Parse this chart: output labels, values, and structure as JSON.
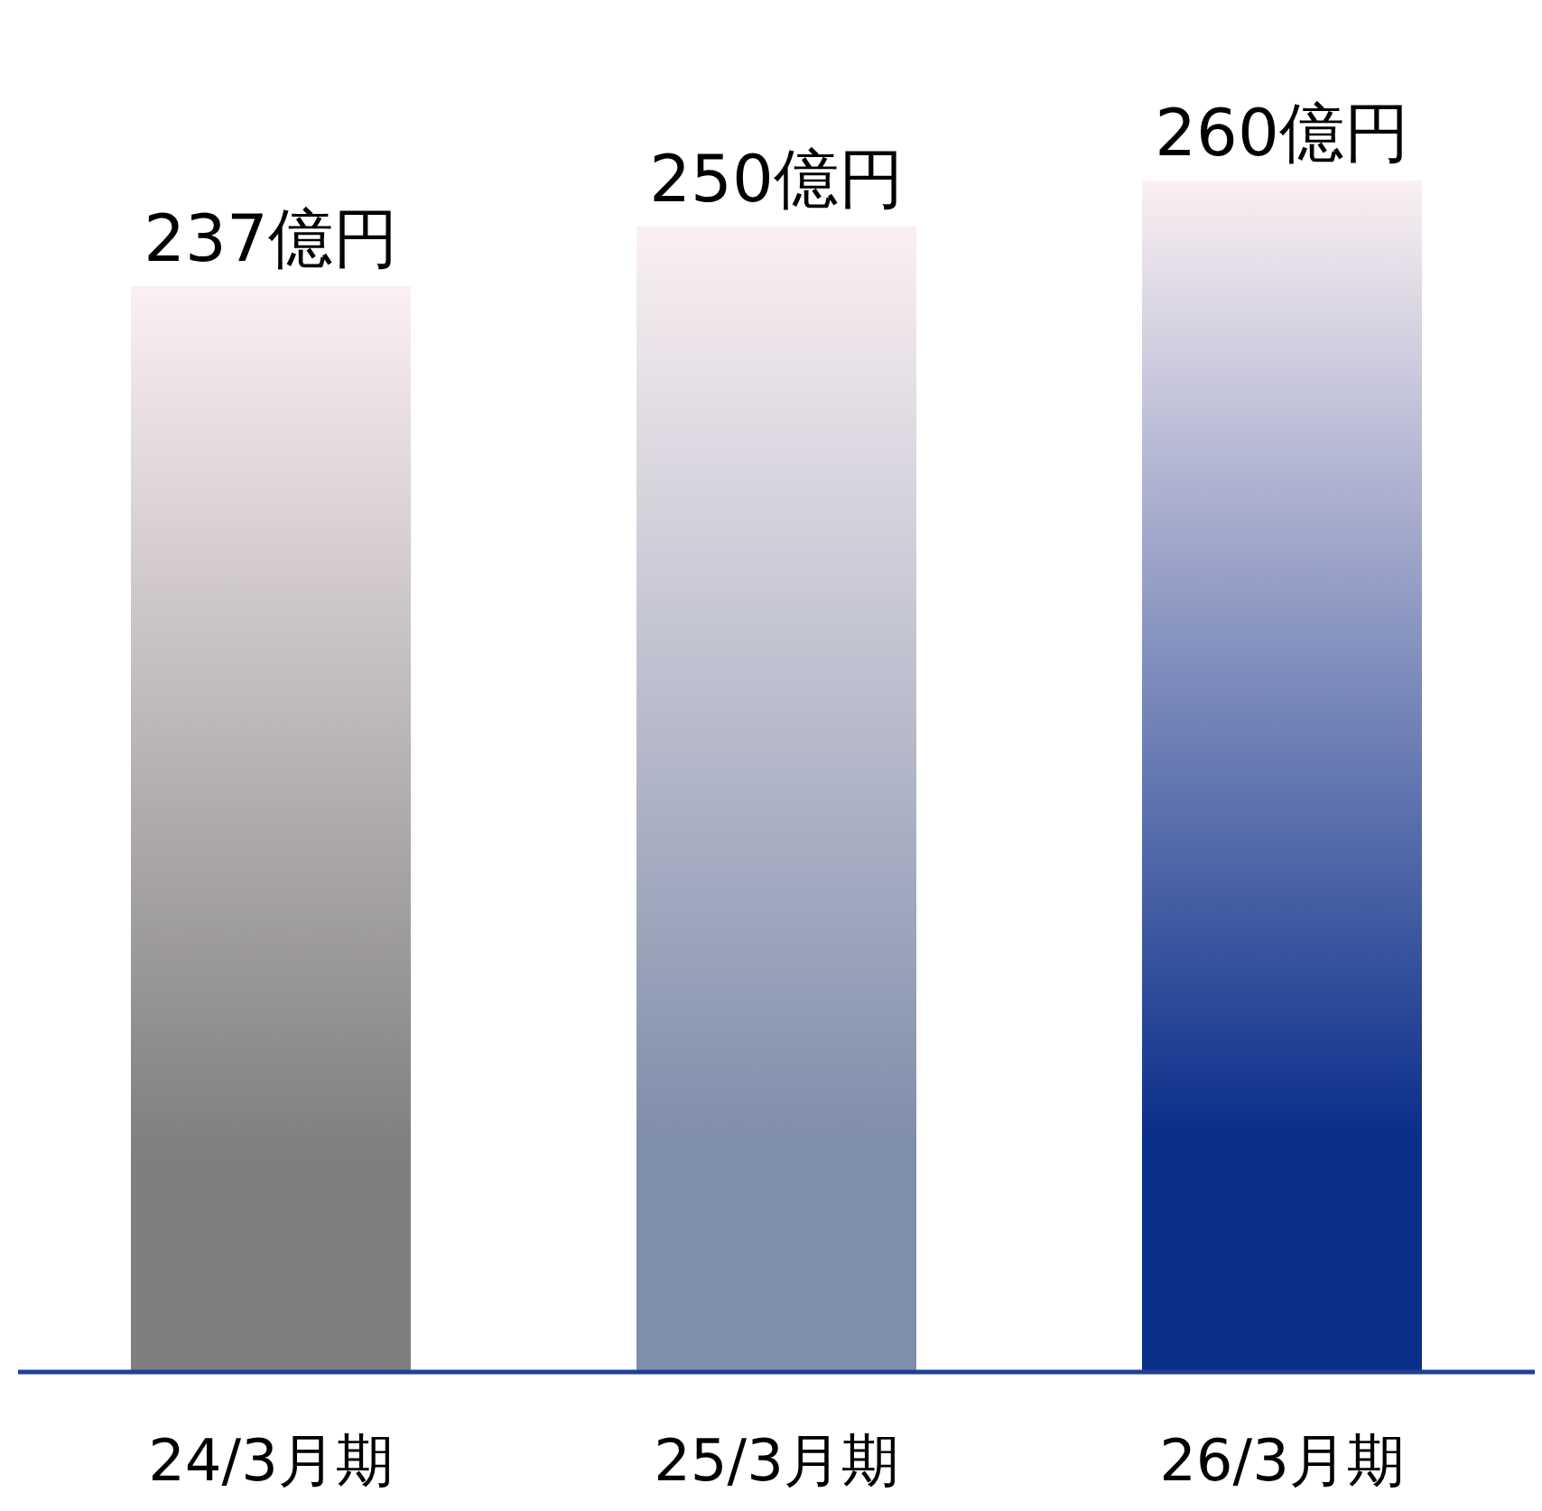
{
  "chart_data": {
    "type": "bar",
    "categories": [
      "24/3月期",
      "25/3月期",
      "26/3月期"
    ],
    "values": [
      237,
      250,
      260
    ],
    "value_labels": [
      "237億円",
      "250億円",
      "260億円"
    ],
    "colors": [
      "#7f7f7f",
      "#7f8eab",
      "#0a2f8a"
    ]
  }
}
